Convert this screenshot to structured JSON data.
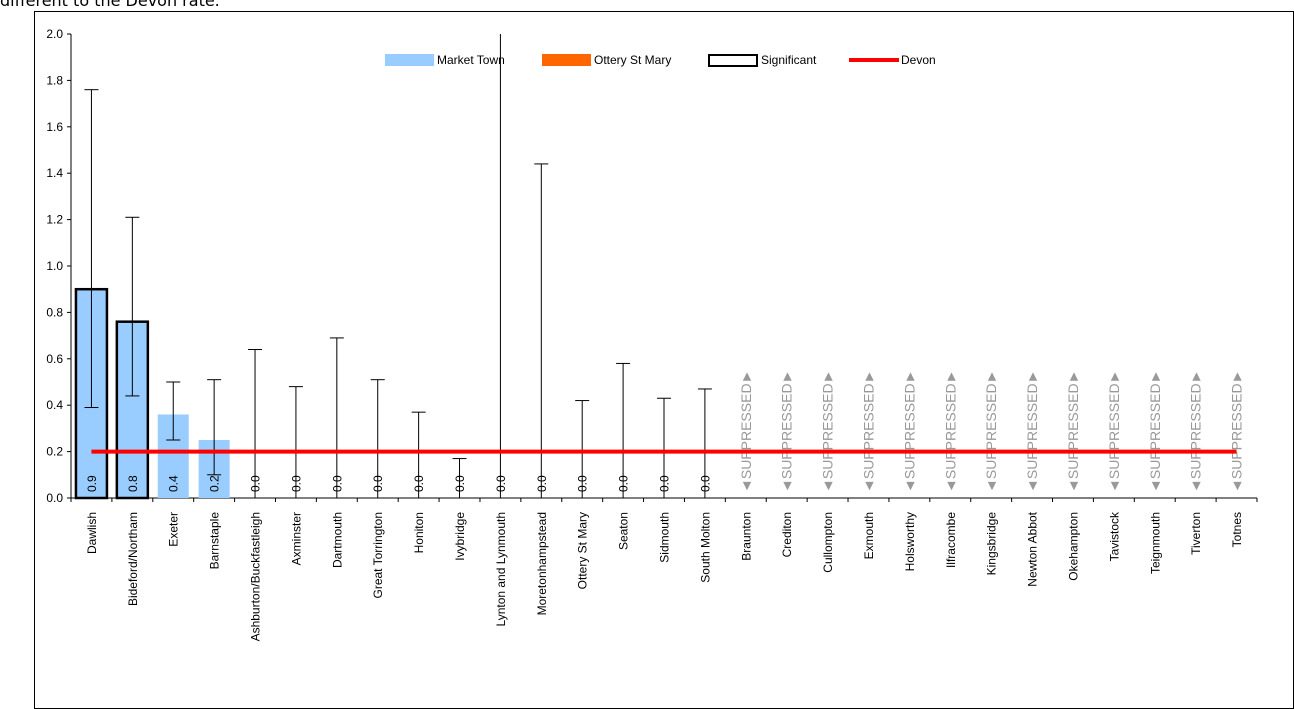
{
  "caption": "different to the Devon rate.",
  "chart_data": {
    "type": "bar",
    "title": "",
    "xlabel": "",
    "ylabel": "",
    "ylim": [
      0,
      2.0
    ],
    "y_ticks": [
      "0.0",
      "0.2",
      "0.4",
      "0.6",
      "0.8",
      "1.0",
      "1.2",
      "1.4",
      "1.6",
      "1.8",
      "2.0"
    ],
    "grid": false,
    "legend_position": "top-center",
    "legend": [
      {
        "label": "Market Town",
        "kind": "bar",
        "color": "#99ccff"
      },
      {
        "label": "Ottery St Mary",
        "kind": "bar",
        "color": "#ff6600"
      },
      {
        "label": "Significant",
        "kind": "outline-box",
        "color": "#000000"
      },
      {
        "label": "Devon",
        "kind": "line",
        "color": "#ff0000"
      }
    ],
    "devon_rate": 0.2,
    "suppressed_label": "SUPPRESSED",
    "categories": [
      "Dawlish",
      "Bideford/Northam",
      "Exeter",
      "Barnstaple",
      "Ashburton/Buckfastleigh",
      "Axminster",
      "Dartmouth",
      "Great Torrington",
      "Honiton",
      "Ivybridge",
      "Lynton and Lynmouth",
      "Moretonhampstead",
      "Ottery St Mary",
      "Seaton",
      "Sidmouth",
      "South Molton",
      "Braunton",
      "Crediton",
      "Cullompton",
      "Exmouth",
      "Holsworthy",
      "Ilfracombe",
      "Kingsbridge",
      "Newton Abbot",
      "Okehampton",
      "Tavistock",
      "Teignmouth",
      "Tiverton",
      "Totnes"
    ],
    "series": [
      {
        "name": "Market Town",
        "values": [
          0.9,
          0.76,
          0.36,
          0.25,
          0,
          0,
          0,
          0,
          0,
          0,
          0,
          0,
          0,
          0,
          0,
          0,
          null,
          null,
          null,
          null,
          null,
          null,
          null,
          null,
          null,
          null,
          null,
          null,
          null
        ],
        "labels": [
          "0.9",
          "0.8",
          "0.4",
          "0.2",
          "0.0",
          "0.0",
          "0.0",
          "0.0",
          "0.0",
          "0.0",
          "0.0",
          "0.0",
          "0.0",
          "0.0",
          "0.0",
          "0.0",
          null,
          null,
          null,
          null,
          null,
          null,
          null,
          null,
          null,
          null,
          null,
          null,
          null
        ],
        "ci_upper": [
          1.76,
          1.21,
          0.5,
          0.51,
          0.64,
          0.48,
          0.69,
          0.51,
          0.37,
          0.17,
          2.0,
          1.44,
          0.42,
          0.58,
          0.43,
          0.47,
          null,
          null,
          null,
          null,
          null,
          null,
          null,
          null,
          null,
          null,
          null,
          null,
          null
        ],
        "ci_lower": [
          0.39,
          0.44,
          0.25,
          0.1,
          0,
          0,
          0,
          0,
          0,
          0,
          0,
          0,
          0,
          0,
          0,
          0,
          null,
          null,
          null,
          null,
          null,
          null,
          null,
          null,
          null,
          null,
          null,
          null,
          null
        ],
        "significant": [
          true,
          true,
          false,
          false,
          false,
          false,
          false,
          false,
          false,
          false,
          false,
          false,
          false,
          false,
          false,
          false,
          false,
          false,
          false,
          false,
          false,
          false,
          false,
          false,
          false,
          false,
          false,
          false,
          false
        ],
        "suppressed": [
          false,
          false,
          false,
          false,
          false,
          false,
          false,
          false,
          false,
          false,
          false,
          false,
          false,
          false,
          false,
          false,
          true,
          true,
          true,
          true,
          true,
          true,
          true,
          true,
          true,
          true,
          true,
          true,
          true
        ]
      }
    ]
  }
}
